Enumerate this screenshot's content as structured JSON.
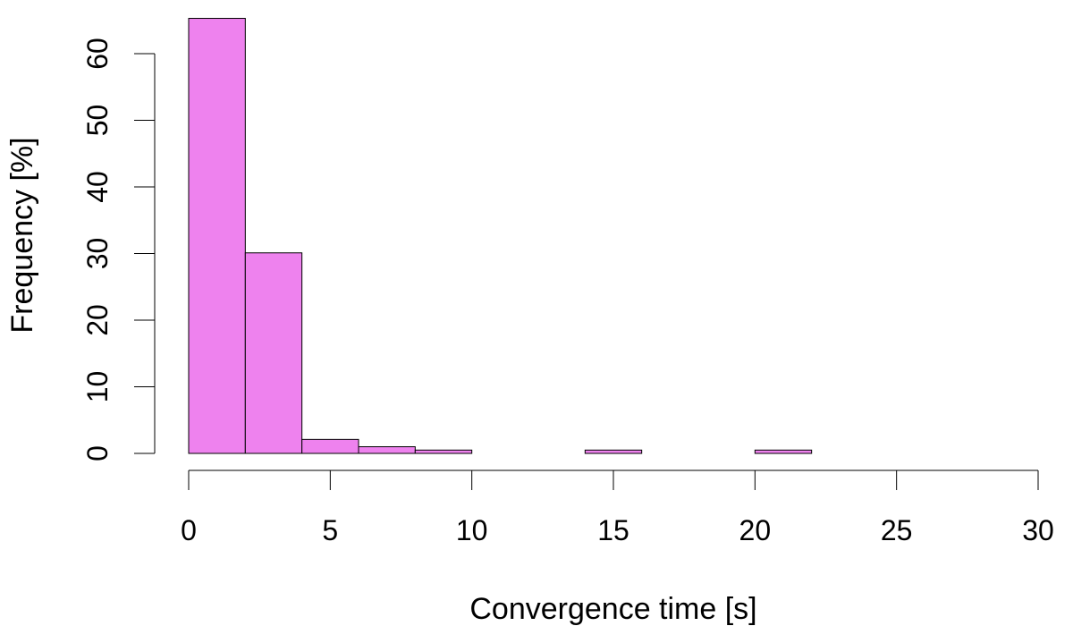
{
  "chart_data": {
    "type": "bar",
    "title": "",
    "xlabel": "Convergence time [s]",
    "ylabel": "Frequency [%]",
    "bin_edges": [
      0,
      2,
      4,
      6,
      8,
      10,
      12,
      14,
      16,
      18,
      20,
      22
    ],
    "values": [
      65.3,
      30.1,
      2.1,
      1.0,
      0.5,
      0,
      0,
      0.5,
      0,
      0,
      0.5
    ],
    "xlim": [
      0,
      30
    ],
    "ylim": [
      0,
      60
    ],
    "x_ticks": [
      0,
      5,
      10,
      15,
      20,
      25,
      30
    ],
    "x_tick_labels": [
      "0",
      "5",
      "10",
      "15",
      "20",
      "25",
      "30"
    ],
    "y_ticks": [
      0,
      10,
      20,
      30,
      40,
      50,
      60
    ],
    "y_tick_labels": [
      "0",
      "10",
      "20",
      "30",
      "40",
      "50",
      "60"
    ],
    "bar_color": "#ee82ee",
    "grid": false
  }
}
